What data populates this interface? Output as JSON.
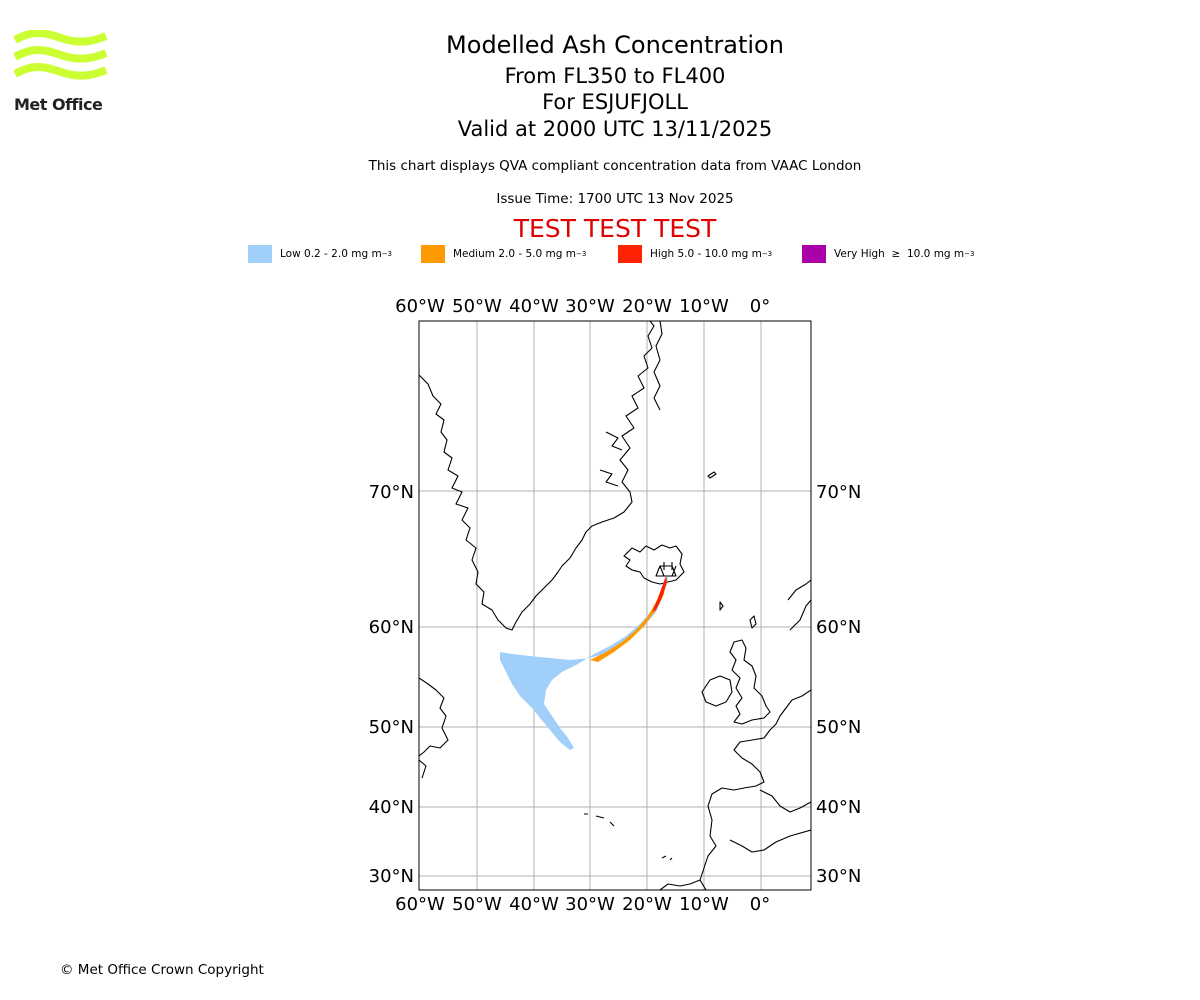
{
  "logo": {
    "text": "Met Office",
    "color": "#ccff33"
  },
  "header": {
    "title": "Modelled Ash Concentration",
    "levels": "From FL350 to FL400",
    "volcano": "For ESJUFJOLL",
    "valid": "Valid at 2000 UTC 13/11/2025",
    "description": "This chart displays QVA compliant concentration data from VAAC London",
    "issue_time": "Issue Time: 1700 UTC 13 Nov 2025",
    "test_banner": "TEST TEST TEST"
  },
  "legend": [
    {
      "label": "Low 0.2 - 2.0 mg m",
      "sup": "−3",
      "color": "#a0d0fa"
    },
    {
      "label": "Medium 2.0 - 5.0 mg m",
      "sup": "−3",
      "color": "#ff9900"
    },
    {
      "label": "High 5.0 - 10.0 mg m",
      "sup": "−3",
      "color": "#ff2200"
    },
    {
      "label": "Very High  ≥  10.0 mg m",
      "sup": "−3",
      "color": "#aa00aa"
    }
  ],
  "map": {
    "lon_labels": [
      "60°W",
      "50°W",
      "40°W",
      "30°W",
      "20°W",
      "10°W",
      "0°"
    ],
    "lat_labels": [
      "70°N",
      "60°N",
      "50°N",
      "40°N",
      "30°N"
    ]
  },
  "footer": {
    "copyright": "© Met Office Crown Copyright"
  }
}
